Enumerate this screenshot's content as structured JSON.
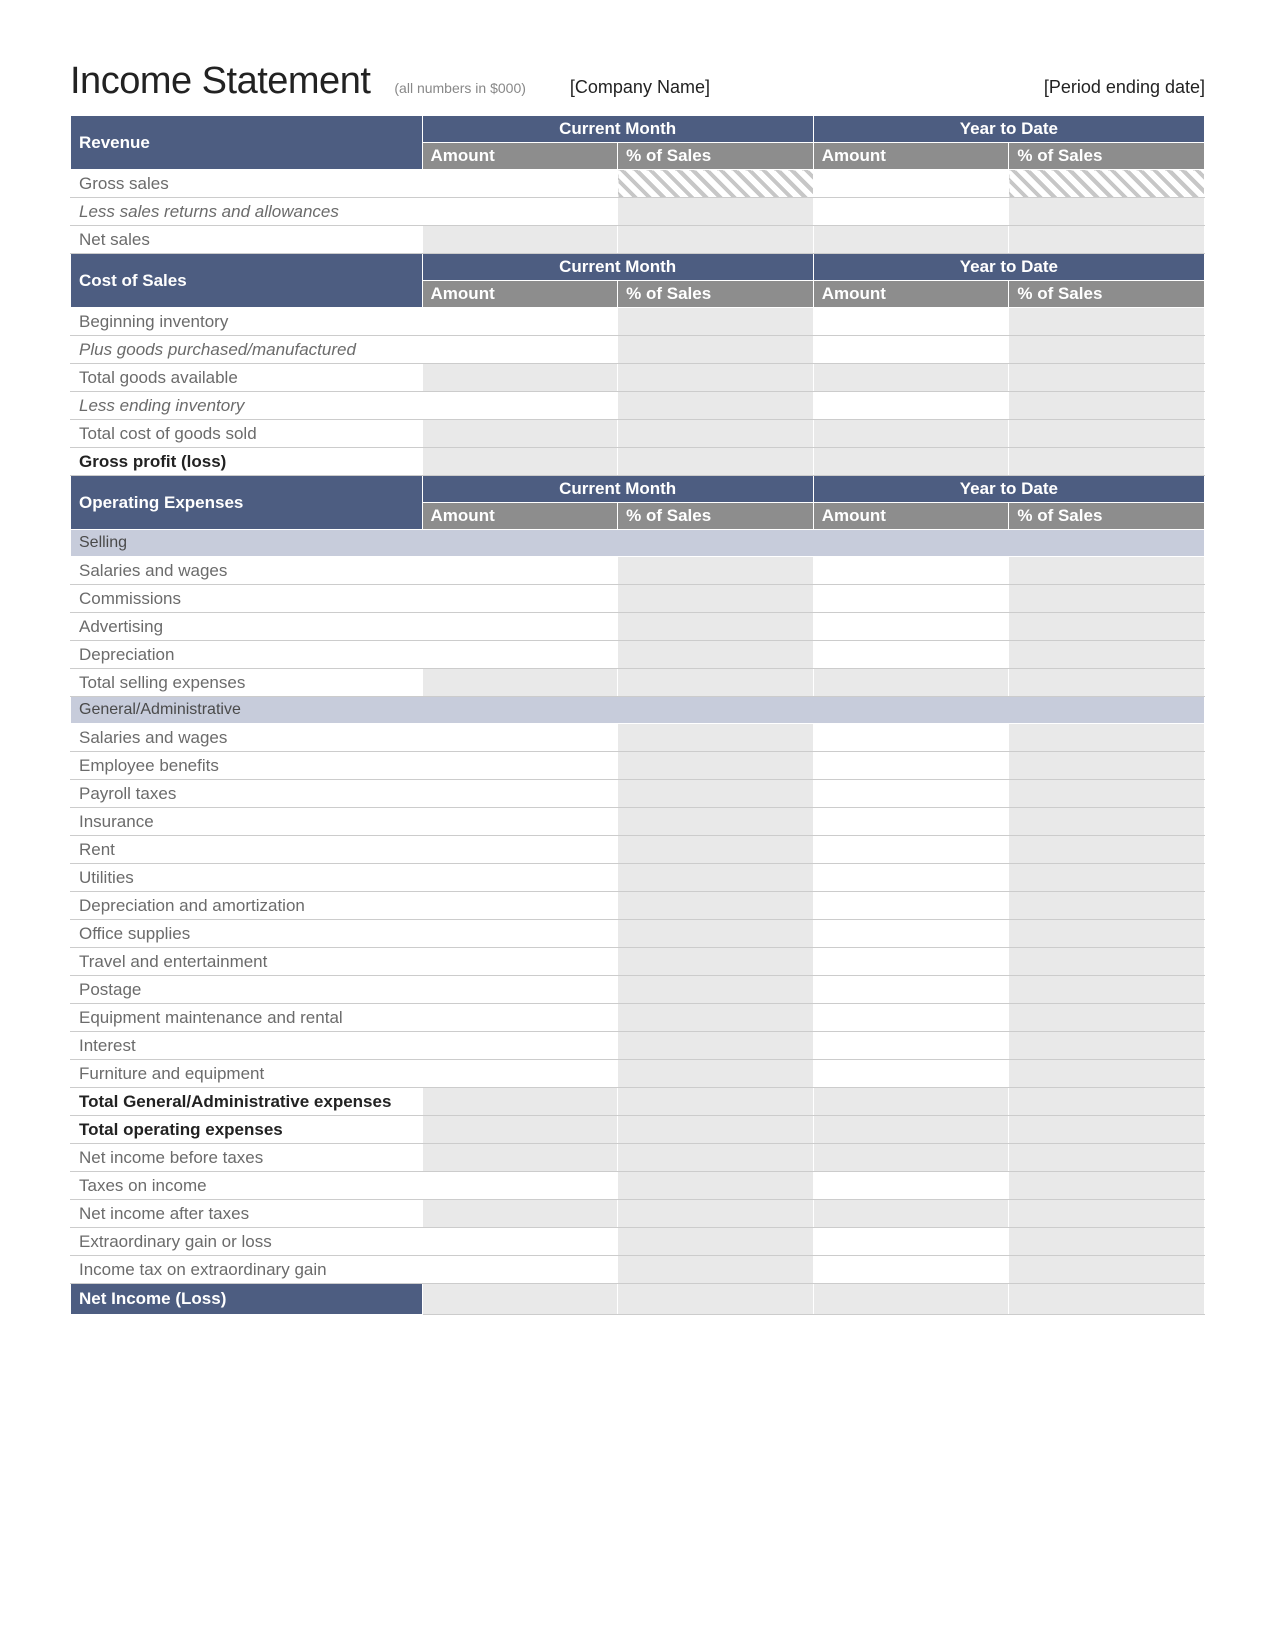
{
  "header": {
    "title": "Income Statement",
    "subtitle": "(all numbers in $000)",
    "company": "[Company Name]",
    "period": "[Period ending date]"
  },
  "column_headers": {
    "current_month": "Current Month",
    "year_to_date": "Year to Date",
    "amount": "Amount",
    "pct_of_sales": "% of Sales"
  },
  "sections": {
    "revenue": {
      "title": "Revenue",
      "rows": [
        {
          "label": "Gross sales",
          "italic": false,
          "cells": [
            "white",
            "hatch",
            "white",
            "hatch"
          ]
        },
        {
          "label": "Less sales returns and allowances",
          "italic": true,
          "cells": [
            "white",
            "grey",
            "white",
            "grey"
          ]
        },
        {
          "label": "Net sales",
          "italic": false,
          "cells": [
            "grey",
            "grey",
            "grey",
            "grey"
          ]
        }
      ]
    },
    "cost_of_sales": {
      "title": "Cost of Sales",
      "rows": [
        {
          "label": "Beginning inventory",
          "italic": false,
          "cells": [
            "white",
            "grey",
            "white",
            "grey"
          ]
        },
        {
          "label": "Plus goods purchased/manufactured",
          "italic": true,
          "cells": [
            "white",
            "grey",
            "white",
            "grey"
          ]
        },
        {
          "label": "Total goods available",
          "italic": false,
          "cells": [
            "grey",
            "grey",
            "grey",
            "grey"
          ]
        },
        {
          "label": "Less ending inventory",
          "italic": true,
          "cells": [
            "white",
            "grey",
            "white",
            "grey"
          ]
        },
        {
          "label": "Total cost of goods sold",
          "italic": false,
          "cells": [
            "grey",
            "grey",
            "grey",
            "grey"
          ]
        },
        {
          "label": "Gross profit (loss)",
          "italic": false,
          "bold": true,
          "cells": [
            "grey",
            "grey",
            "grey",
            "grey"
          ]
        }
      ]
    },
    "operating_expenses": {
      "title": "Operating Expenses",
      "subsections": [
        {
          "title": "Selling",
          "rows": [
            {
              "label": "Salaries and wages",
              "cells": [
                "white",
                "grey",
                "white",
                "grey"
              ]
            },
            {
              "label": "Commissions",
              "cells": [
                "white",
                "grey",
                "white",
                "grey"
              ]
            },
            {
              "label": "Advertising",
              "cells": [
                "white",
                "grey",
                "white",
                "grey"
              ]
            },
            {
              "label": "Depreciation",
              "cells": [
                "white",
                "grey",
                "white",
                "grey"
              ]
            },
            {
              "label": "Total selling expenses",
              "cells": [
                "grey",
                "grey",
                "grey",
                "grey"
              ]
            }
          ]
        },
        {
          "title": "General/Administrative",
          "rows": [
            {
              "label": "Salaries and wages",
              "cells": [
                "white",
                "grey",
                "white",
                "grey"
              ]
            },
            {
              "label": "Employee benefits",
              "cells": [
                "white",
                "grey",
                "white",
                "grey"
              ]
            },
            {
              "label": "Payroll taxes",
              "cells": [
                "white",
                "grey",
                "white",
                "grey"
              ]
            },
            {
              "label": "Insurance",
              "cells": [
                "white",
                "grey",
                "white",
                "grey"
              ]
            },
            {
              "label": "Rent",
              "cells": [
                "white",
                "grey",
                "white",
                "grey"
              ]
            },
            {
              "label": "Utilities",
              "cells": [
                "white",
                "grey",
                "white",
                "grey"
              ]
            },
            {
              "label": "Depreciation and amortization",
              "cells": [
                "white",
                "grey",
                "white",
                "grey"
              ]
            },
            {
              "label": "Office supplies",
              "cells": [
                "white",
                "grey",
                "white",
                "grey"
              ]
            },
            {
              "label": "Travel and entertainment",
              "cells": [
                "white",
                "grey",
                "white",
                "grey"
              ]
            },
            {
              "label": "Postage",
              "cells": [
                "white",
                "grey",
                "white",
                "grey"
              ]
            },
            {
              "label": "Equipment maintenance and rental",
              "cells": [
                "white",
                "grey",
                "white",
                "grey"
              ]
            },
            {
              "label": "Interest",
              "cells": [
                "white",
                "grey",
                "white",
                "grey"
              ]
            },
            {
              "label": "Furniture and equipment",
              "cells": [
                "white",
                "grey",
                "white",
                "grey"
              ]
            },
            {
              "label": "Total General/Administrative expenses",
              "bold": true,
              "cells": [
                "grey",
                "grey",
                "grey",
                "grey"
              ]
            },
            {
              "label": "Total operating expenses",
              "bold": true,
              "cells": [
                "grey",
                "grey",
                "grey",
                "grey"
              ]
            },
            {
              "label": "Net income before taxes",
              "cells": [
                "grey",
                "grey",
                "grey",
                "grey"
              ]
            },
            {
              "label": "Taxes on income",
              "cells": [
                "white",
                "grey",
                "white",
                "grey"
              ]
            },
            {
              "label": "Net income after taxes",
              "cells": [
                "grey",
                "grey",
                "grey",
                "grey"
              ]
            },
            {
              "label": "Extraordinary gain or loss",
              "cells": [
                "white",
                "grey",
                "white",
                "grey"
              ]
            },
            {
              "label": "Income tax on extraordinary gain",
              "cells": [
                "white",
                "grey",
                "white",
                "grey"
              ]
            }
          ]
        }
      ]
    },
    "net_income": {
      "label": "Net Income (Loss)",
      "cells": [
        "grey",
        "grey",
        "grey",
        "grey"
      ]
    }
  },
  "colors": {
    "header_blue": "#4d5d81",
    "subheader_grey": "#8d8d8d",
    "cell_grey": "#e9e9e9",
    "subsection_band": "#c7ccdb",
    "label_text": "#6b6b6b"
  }
}
